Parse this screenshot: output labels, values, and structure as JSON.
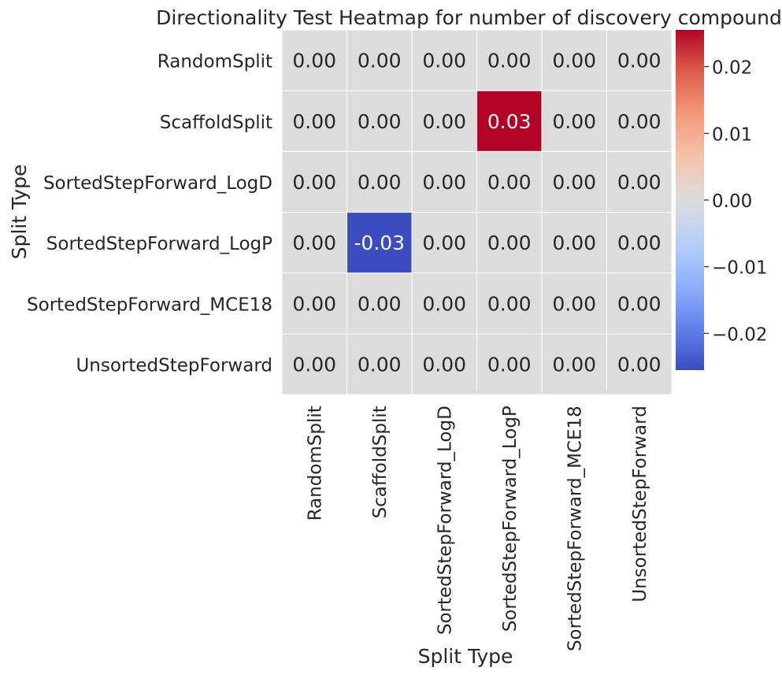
{
  "chart_data": {
    "type": "heatmap",
    "title": "Directionality Test Heatmap for number of discovery compounds",
    "xlabel": "Split Type",
    "ylabel": "Split Type",
    "x_categories": [
      "RandomSplit",
      "ScaffoldSplit",
      "SortedStepForward_LogD",
      "SortedStepForward_LogP",
      "SortedStepForward_MCE18",
      "UnsortedStepForward"
    ],
    "y_categories": [
      "RandomSplit",
      "ScaffoldSplit",
      "SortedStepForward_LogD",
      "SortedStepForward_LogP",
      "SortedStepForward_MCE18",
      "UnsortedStepForward"
    ],
    "values": [
      [
        0.0,
        0.0,
        0.0,
        0.0,
        0.0,
        0.0
      ],
      [
        0.0,
        0.0,
        0.0,
        0.0255,
        0.0,
        0.0
      ],
      [
        0.0,
        0.0,
        0.0,
        0.0,
        0.0,
        0.0
      ],
      [
        0.0,
        -0.0255,
        0.0,
        0.0,
        0.0,
        0.0
      ],
      [
        0.0,
        0.0,
        0.0,
        0.0,
        0.0,
        0.0
      ],
      [
        0.0,
        0.0,
        0.0,
        0.0,
        0.0,
        0.0
      ]
    ],
    "annotations": [
      [
        "0.00",
        "0.00",
        "0.00",
        "0.00",
        "0.00",
        "0.00"
      ],
      [
        "0.00",
        "0.00",
        "0.00",
        "0.03",
        "0.00",
        "0.00"
      ],
      [
        "0.00",
        "0.00",
        "0.00",
        "0.00",
        "0.00",
        "0.00"
      ],
      [
        "0.00",
        "-0.03",
        "0.00",
        "0.00",
        "0.00",
        "0.00"
      ],
      [
        "0.00",
        "0.00",
        "0.00",
        "0.00",
        "0.00",
        "0.00"
      ],
      [
        "0.00",
        "0.00",
        "0.00",
        "0.00",
        "0.00",
        "0.00"
      ]
    ],
    "colormap": "coolwarm",
    "vmin": -0.0255,
    "vmax": 0.0255,
    "colorbar_ticks": [
      0.02,
      0.01,
      0.0,
      -0.01,
      -0.02
    ],
    "colorbar_tick_labels": [
      "0.02",
      "0.01",
      "0.00",
      "−0.01",
      "−0.02"
    ],
    "colors": {
      "max": "#b40426",
      "mid": "#dddcdc",
      "min": "#3b4cc0",
      "cell_border": "#ffffff",
      "text_dark": "#262626",
      "text_light": "#ffffff"
    }
  }
}
